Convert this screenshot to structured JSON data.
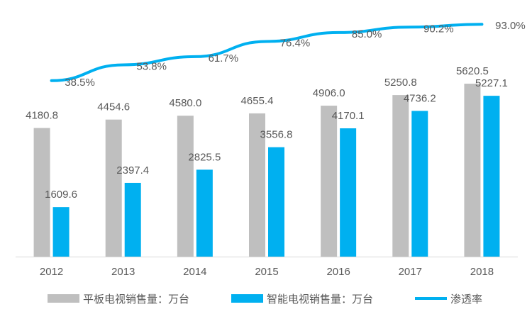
{
  "chart_data": {
    "type": "bar",
    "categories": [
      "2012",
      "2013",
      "2014",
      "2015",
      "2016",
      "2017",
      "2018"
    ],
    "series": [
      {
        "name": "平板电视销售量：万台",
        "type": "bar",
        "color": "#bfbfbf",
        "values": [
          4180.8,
          4454.6,
          4580.0,
          4655.4,
          4906.0,
          5250.8,
          5620.5
        ],
        "labels": [
          "4180.8",
          "4454.6",
          "4580.0",
          "4655.4",
          "4906.0",
          "5250.8",
          "5620.5"
        ]
      },
      {
        "name": "智能电视销售量：万台",
        "type": "bar",
        "color": "#00b0f0",
        "values": [
          1609.6,
          2397.4,
          2825.5,
          3556.8,
          4170.1,
          4736.2,
          5227.1
        ],
        "labels": [
          "1609.6",
          "2397.4",
          "2825.5",
          "3556.8",
          "4170.1",
          "4736.2",
          "5227.1"
        ]
      },
      {
        "name": "渗透率",
        "type": "line",
        "color": "#00b0f0",
        "values": [
          38.5,
          53.8,
          61.7,
          76.4,
          85.0,
          90.2,
          93.0
        ],
        "labels": [
          "38.5%",
          "53.8%",
          "61.7%",
          "76.4%",
          "85.0%",
          "90.2%",
          "93.0%"
        ]
      }
    ],
    "ylim_bars": [
      0,
      7000
    ],
    "ylim_line": [
      0,
      100
    ],
    "grid": false,
    "legend_position": "bottom"
  }
}
